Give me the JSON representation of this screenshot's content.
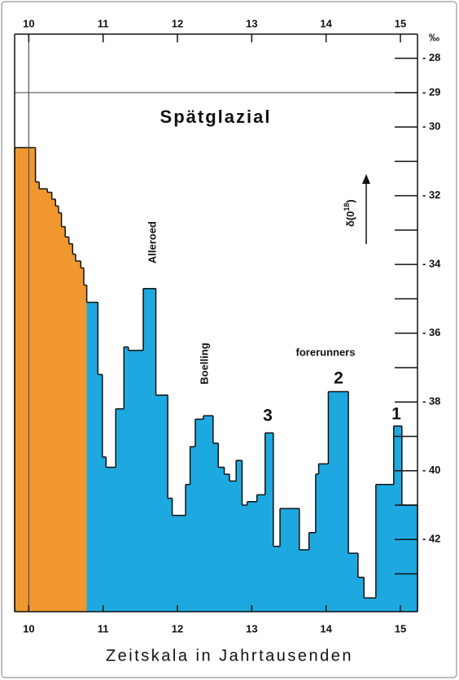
{
  "chart_data": {
    "type": "step",
    "title": "Spätglazial",
    "x_label": "Zeitskala in Jahrtausenden",
    "y_unit": "‰",
    "y_label": {
      "base": "δ(0",
      "sup": "18",
      "close": ")"
    },
    "annotations": [
      "Alleroed",
      "Boelling",
      "forerunners",
      "3",
      "2",
      "1"
    ],
    "xlim": [
      9.81,
      15.23
    ],
    "xticks": [
      10,
      11,
      12,
      13,
      14,
      15
    ],
    "ylim": [
      -44.1,
      -27.3
    ],
    "yticks": [
      {
        "value": -28,
        "label": "- 28"
      },
      {
        "value": -29,
        "label": "- 29"
      },
      {
        "value": -30,
        "label": "- 30"
      },
      {
        "value": -32,
        "label": "- 32"
      },
      {
        "value": -34,
        "label": "- 34"
      },
      {
        "value": -36,
        "label": "- 36"
      },
      {
        "value": -38,
        "label": "- 38"
      },
      {
        "value": -40,
        "label": "- 40"
      },
      {
        "value": -42,
        "label": "- 42"
      }
    ],
    "yminor_ticks": [
      -31,
      -33,
      -35,
      -37,
      -39,
      -41,
      -43
    ],
    "series": [
      {
        "color": "#f0982f",
        "x": [
          9.81,
          10.09,
          10.14,
          10.25,
          10.31,
          10.36,
          10.4,
          10.44,
          10.49,
          10.54,
          10.59,
          10.63,
          10.7,
          10.74
        ],
        "values": [
          -30.6,
          -31.6,
          -31.8,
          -31.9,
          -32.1,
          -32.3,
          -32.5,
          -32.9,
          -33.2,
          -33.4,
          -33.7,
          -33.9,
          -34.1,
          -34.6
        ]
      },
      {
        "color": "#1ea8e0",
        "x": [
          10.78,
          10.93,
          10.99,
          11.04,
          11.17,
          11.28,
          11.34,
          11.54,
          11.71,
          11.87,
          11.93,
          12.11,
          12.17,
          12.24,
          12.35,
          12.48,
          12.55,
          12.63,
          12.7,
          12.79,
          12.87,
          12.94,
          13.07,
          13.18,
          13.29,
          13.38,
          13.64,
          13.77,
          13.86,
          13.9,
          14.03,
          14.3,
          14.43,
          14.51,
          14.67,
          14.91,
          15.02
        ],
        "values": [
          -35.1,
          -37.2,
          -39.6,
          -39.9,
          -38.2,
          -36.4,
          -36.5,
          -34.7,
          -37.8,
          -40.8,
          -41.3,
          -40.4,
          -39.3,
          -38.5,
          -38.4,
          -39.2,
          -39.9,
          -40.1,
          -40.3,
          -39.7,
          -41.0,
          -40.9,
          -40.7,
          -38.9,
          -42.2,
          -41.1,
          -42.3,
          -41.8,
          -40.1,
          -39.8,
          -37.7,
          -42.4,
          -43.1,
          -43.7,
          -40.4,
          -38.7,
          -41.0
        ]
      }
    ]
  }
}
